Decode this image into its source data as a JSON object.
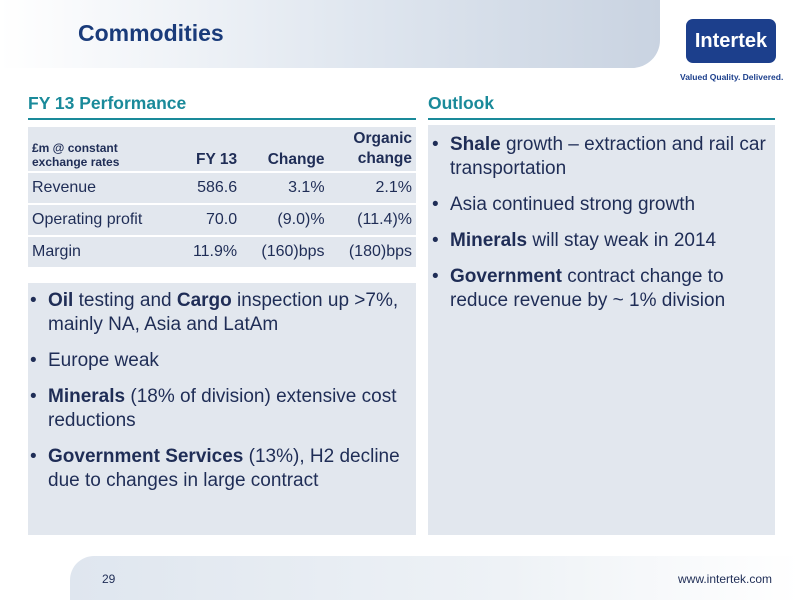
{
  "header": {
    "title": "Commodities",
    "logo_text": "Intertek",
    "tagline": "Valued Quality. Delivered."
  },
  "left": {
    "section_title": "FY 13 Performance",
    "table": {
      "headers": [
        "£m @ constant exchange rates",
        "FY 13",
        "Change",
        "Organic change"
      ],
      "rows": [
        [
          "Revenue",
          "586.6",
          "3.1%",
          "2.1%"
        ],
        [
          "Operating profit",
          "70.0",
          "(9.0)%",
          "(11.4)%"
        ],
        [
          "Margin",
          "11.9%",
          "(160)bps",
          "(180)bps"
        ]
      ]
    },
    "bullets": [
      {
        "bold1": "Oil",
        "text1": " testing and ",
        "bold2": "Cargo",
        "text2": " inspection up >7%, mainly NA, Asia and LatAm"
      },
      {
        "bold1": "",
        "text1": "Europe weak",
        "bold2": "",
        "text2": ""
      },
      {
        "bold1": "Minerals",
        "text1": " (18% of division) extensive cost reductions",
        "bold2": "",
        "text2": ""
      },
      {
        "bold1": "Government Services",
        "text1": " (13%), H2 decline due to changes in large contract",
        "bold2": "",
        "text2": ""
      }
    ]
  },
  "right": {
    "section_title": "Outlook",
    "bullets": [
      {
        "bold": "Shale",
        "text": " growth – extraction and rail car transportation"
      },
      {
        "bold": "",
        "text": "Asia continued strong growth"
      },
      {
        "bold": "Minerals",
        "text": " will stay weak in 2014"
      },
      {
        "bold": "Government",
        "text": " contract change to reduce revenue by ~ 1% division"
      }
    ]
  },
  "footer": {
    "page_number": "29",
    "url": "www.intertek.com"
  },
  "colors": {
    "title": "#1a3b7a",
    "accent_teal": "#1a8a9a",
    "panel": "#e2e7ee",
    "logo_bg": "#1c3f8c",
    "text": "#1f2d56"
  }
}
